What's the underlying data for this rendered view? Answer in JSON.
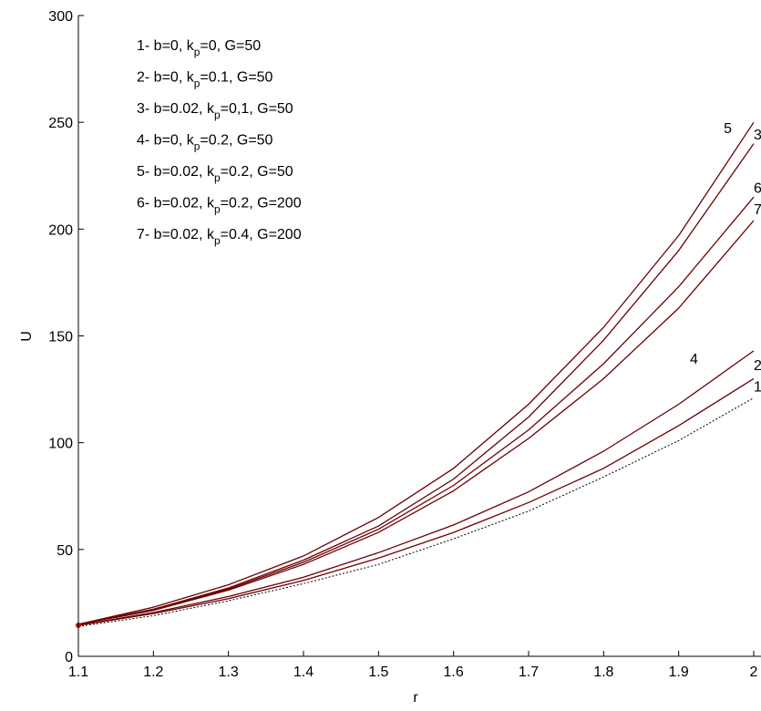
{
  "chart_data": {
    "type": "line",
    "xlabel": "r",
    "ylabel": "U",
    "xlim": [
      1.1,
      2.0
    ],
    "ylim": [
      0,
      300
    ],
    "grid": false,
    "legend_position": "top-left",
    "xticks": [
      1.1,
      1.2,
      1.3,
      1.4,
      1.5,
      1.6,
      1.7,
      1.8,
      1.9,
      2.0
    ],
    "xtick_labels": [
      "1.1",
      "1.2",
      "1.3",
      "1.4",
      "1.5",
      "1.6",
      "1.7",
      "1.8",
      "1.9",
      "2"
    ],
    "yticks": [
      0,
      50,
      100,
      150,
      200,
      250,
      300
    ],
    "ytick_labels": [
      "0",
      "50",
      "100",
      "150",
      "200",
      "250",
      "300"
    ],
    "legend": [
      {
        "num": "1-",
        "a": "b=0, k",
        "sub": "p",
        "b": "=0, G=50"
      },
      {
        "num": "2-",
        "a": "b=0, k",
        "sub": "p",
        "b": "=0.1, G=50"
      },
      {
        "num": "3-",
        "a": "b=0.02, k",
        "sub": "p",
        "b": "=0,1, G=50"
      },
      {
        "num": "4-",
        "a": "b=0, k",
        "sub": "p",
        "b": "=0.2, G=50"
      },
      {
        "num": "5-",
        "a": "b=0.02, k",
        "sub": "p",
        "b": "=0.2, G=50"
      },
      {
        "num": "6-",
        "a": "b=0.02, k",
        "sub": "p",
        "b": "=0.2, G=200"
      },
      {
        "num": "7-",
        "a": "b=0.02, k",
        "sub": "p",
        "b": "=0.4, G=200"
      }
    ],
    "x": [
      1.1,
      1.2,
      1.3,
      1.4,
      1.5,
      1.6,
      1.7,
      1.8,
      1.9,
      2.0
    ],
    "series": [
      {
        "label": "1",
        "style": "dotted",
        "color": "#000000",
        "values": [
          14,
          19,
          26,
          34,
          43,
          55,
          68,
          84,
          101,
          121
        ]
      },
      {
        "label": "2",
        "style": "solid",
        "color": "#6b0000",
        "values": [
          14.5,
          20,
          27,
          35.5,
          46,
          58,
          72,
          88,
          108,
          130
        ]
      },
      {
        "label": "3",
        "style": "solid",
        "color": "#6b0000",
        "values": [
          15,
          22,
          32,
          45,
          61,
          83,
          112,
          148,
          190,
          240
        ]
      },
      {
        "label": "4",
        "style": "solid",
        "color": "#6b0000",
        "values": [
          14.5,
          20.5,
          28,
          37,
          48.5,
          61.5,
          77,
          96,
          118,
          143
        ]
      },
      {
        "label": "5",
        "style": "solid",
        "color": "#6b0000",
        "values": [
          15,
          23,
          33.5,
          47,
          65,
          88,
          118,
          154,
          197,
          250
        ]
      },
      {
        "label": "6",
        "style": "solid",
        "color": "#6b0000",
        "values": [
          15,
          22,
          31.5,
          44,
          59.5,
          80,
          106,
          137,
          173,
          215
        ]
      },
      {
        "label": "7",
        "style": "solid",
        "color": "#6b0000",
        "values": [
          15,
          21.5,
          31,
          43,
          58,
          77.5,
          102,
          130,
          163,
          204
        ]
      }
    ],
    "curve_labels": [
      {
        "text": "5",
        "x": 1.96,
        "y": 245
      },
      {
        "text": "3",
        "x": 2.0,
        "y": 242
      },
      {
        "text": "6",
        "x": 2.0,
        "y": 217
      },
      {
        "text": "7",
        "x": 2.0,
        "y": 207
      },
      {
        "text": "4",
        "x": 1.915,
        "y": 137
      },
      {
        "text": "2",
        "x": 2.0,
        "y": 134
      },
      {
        "text": "1",
        "x": 2.0,
        "y": 124
      }
    ]
  }
}
